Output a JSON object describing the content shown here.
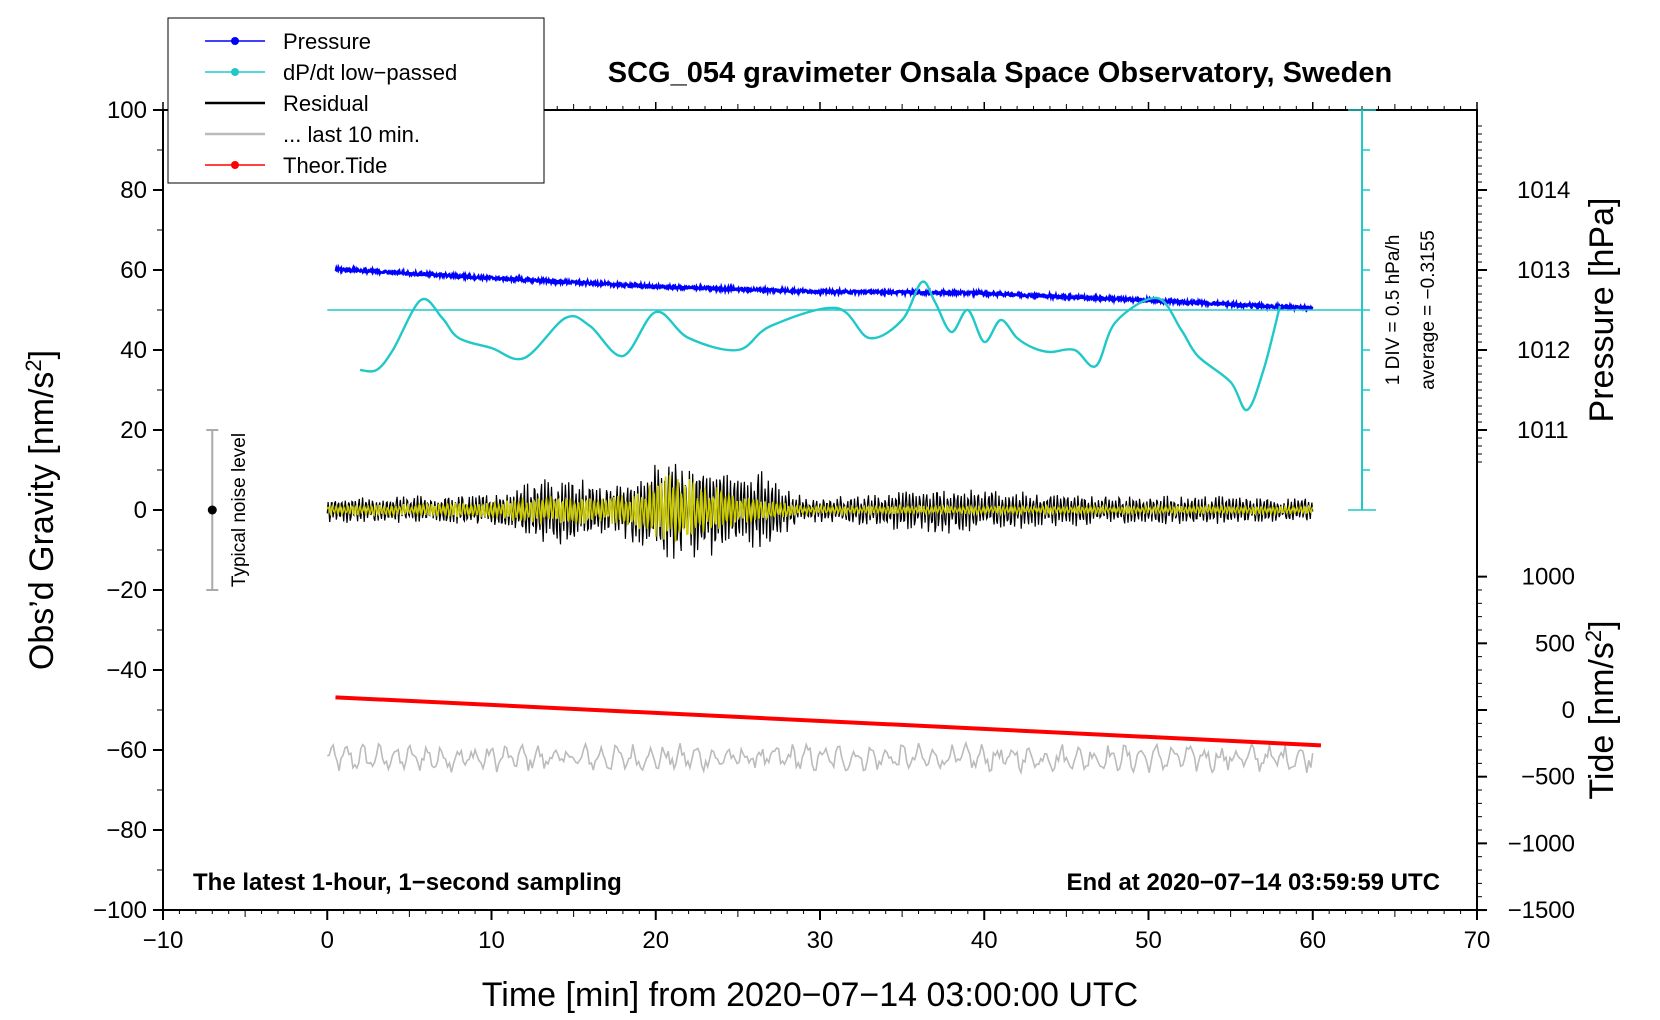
{
  "chart_data": {
    "type": "line",
    "title": "SCG_054 gravimeter Onsala Space Observatory, Sweden",
    "xlabel": "Time [min] from 2020−07−14 03:00:00 UTC",
    "ylabel_left": "Obs’d Gravity [nm/s",
    "ylabel_left_sup": "2",
    "ylabel_left_close": "]",
    "ylabel_pressure": "Pressure [hPa]",
    "ylabel_tide": "Tide [nm/s",
    "ylabel_tide_sup": "2",
    "ylabel_tide_close": "]",
    "xlim": [
      -10,
      70
    ],
    "ylim_left": [
      -100,
      100
    ],
    "x_ticks": [
      "−10",
      "0",
      "10",
      "20",
      "30",
      "40",
      "50",
      "60",
      "70"
    ],
    "x_tick_values": [
      -10,
      0,
      10,
      20,
      30,
      40,
      50,
      60,
      70
    ],
    "y_ticks": [
      "100",
      "80",
      "60",
      "40",
      "20",
      "0",
      "−20",
      "−40",
      "−60",
      "−80",
      "−100"
    ],
    "y_tick_values": [
      100,
      80,
      60,
      40,
      20,
      0,
      -20,
      -40,
      -60,
      -80,
      -100
    ],
    "pressure_ticks": [
      "1014",
      "1013",
      "1012",
      "1011"
    ],
    "pressure_tick_values": [
      1014,
      1013,
      1012,
      1011
    ],
    "pressure_scale": {
      "left_value_at_1013": 60,
      "left_units_per_hPa": 20
    },
    "tide_ticks": [
      "1000",
      "500",
      "0",
      "−500",
      "−1000",
      "−1500"
    ],
    "tide_tick_values": [
      1000,
      500,
      0,
      -500,
      -1000,
      -1500
    ],
    "tide_scale": {
      "left_value_at_0": -50,
      "left_units_per_500": 16.67
    },
    "legend": {
      "position": "top-left",
      "entries": [
        {
          "label": "Pressure",
          "color": "#0000ff",
          "marker": true
        },
        {
          "label": "dP/dt low−passed",
          "color": "#20c8c8",
          "marker": true
        },
        {
          "label": "Residual",
          "color": "#000000",
          "marker": false
        },
        {
          "label": "... last 10 min.",
          "color": "#bbbbbb",
          "marker": false
        },
        {
          "label": "Theor.Tide",
          "color": "#ff0000",
          "marker": true
        }
      ]
    },
    "series": [
      {
        "name": "Pressure",
        "color": "#0000ff",
        "unit": "hPa",
        "x": [
          0.5,
          10,
          20,
          30,
          36,
          40,
          50,
          55,
          60
        ],
        "values": [
          1013.01,
          1012.9,
          1012.79,
          1012.73,
          1012.72,
          1012.71,
          1012.62,
          1012.57,
          1012.52
        ]
      },
      {
        "name": "dP/dt low−passed",
        "color": "#20c8c8",
        "unit": "left-axis",
        "x": [
          2,
          3,
          4,
          5.7,
          7,
          8,
          10,
          12,
          14.5,
          16,
          18,
          20,
          22,
          25,
          27,
          31,
          33,
          35,
          36.2,
          37,
          38,
          39,
          40,
          41,
          42,
          43,
          44,
          45.5,
          46.8,
          48,
          50.5,
          52,
          53,
          55,
          56,
          57,
          58
        ],
        "values": [
          35,
          35,
          40,
          52.5,
          48,
          43,
          40.5,
          38,
          48,
          46,
          38.5,
          49.5,
          43,
          40,
          46,
          50.5,
          43,
          47.5,
          57,
          52,
          44.5,
          50,
          42,
          47.5,
          43,
          40.5,
          39.5,
          40,
          36,
          47,
          53,
          45,
          38.5,
          32,
          25,
          35,
          51
        ]
      },
      {
        "name": "Residual",
        "color": "#000000",
        "unit": "left-axis",
        "x": [
          0,
          10,
          14,
          17,
          20,
          21,
          22.5,
          25,
          26.5,
          29,
          33,
          37,
          45,
          60
        ],
        "values": [
          0,
          0,
          0,
          0,
          0,
          0,
          0,
          0,
          0,
          0,
          0,
          0,
          0,
          0
        ],
        "envelope": [
          3,
          4,
          9,
          6,
          11,
          15,
          12,
          10,
          10,
          3,
          4,
          6,
          4,
          3
        ]
      },
      {
        "name": "Yellow filtered residual",
        "color": "#cccc00",
        "unit": "left-axis",
        "x": [
          0,
          10,
          14,
          17,
          20,
          21,
          22.5,
          25,
          26.5,
          29,
          33,
          37,
          45,
          60
        ],
        "values": [
          0,
          0,
          0,
          0,
          0,
          0,
          0,
          0,
          0,
          0,
          0,
          0,
          0,
          0
        ],
        "envelope": [
          1,
          2,
          4,
          3,
          7,
          9,
          7,
          4,
          3,
          1,
          1,
          1,
          1,
          1
        ]
      },
      {
        "name": "... last 10 min.",
        "color": "#bbbbbb",
        "unit": "left-axis",
        "x": [
          0,
          60
        ],
        "values": [
          -62,
          -62
        ],
        "envelope": [
          4,
          4
        ]
      },
      {
        "name": "Theor.Tide",
        "color": "#ff0000",
        "unit": "nm/s2",
        "x": [
          0.5,
          60.5
        ],
        "values": [
          95,
          -265
        ]
      }
    ],
    "noise_bar": {
      "label": "Typical noise level",
      "x": -7,
      "center": 0,
      "low": -20,
      "high": 20
    },
    "pressure_scale_bar": {
      "x": 63,
      "from": 0,
      "to": 100,
      "reference_level": 50,
      "label1": "1 DIV = 0.5 hPa/h",
      "label2": "average = −0.3155"
    },
    "annotation_left": "The latest 1-hour, 1−second sampling",
    "annotation_right": "End at 2020−07−14 03:59:59 UTC"
  }
}
